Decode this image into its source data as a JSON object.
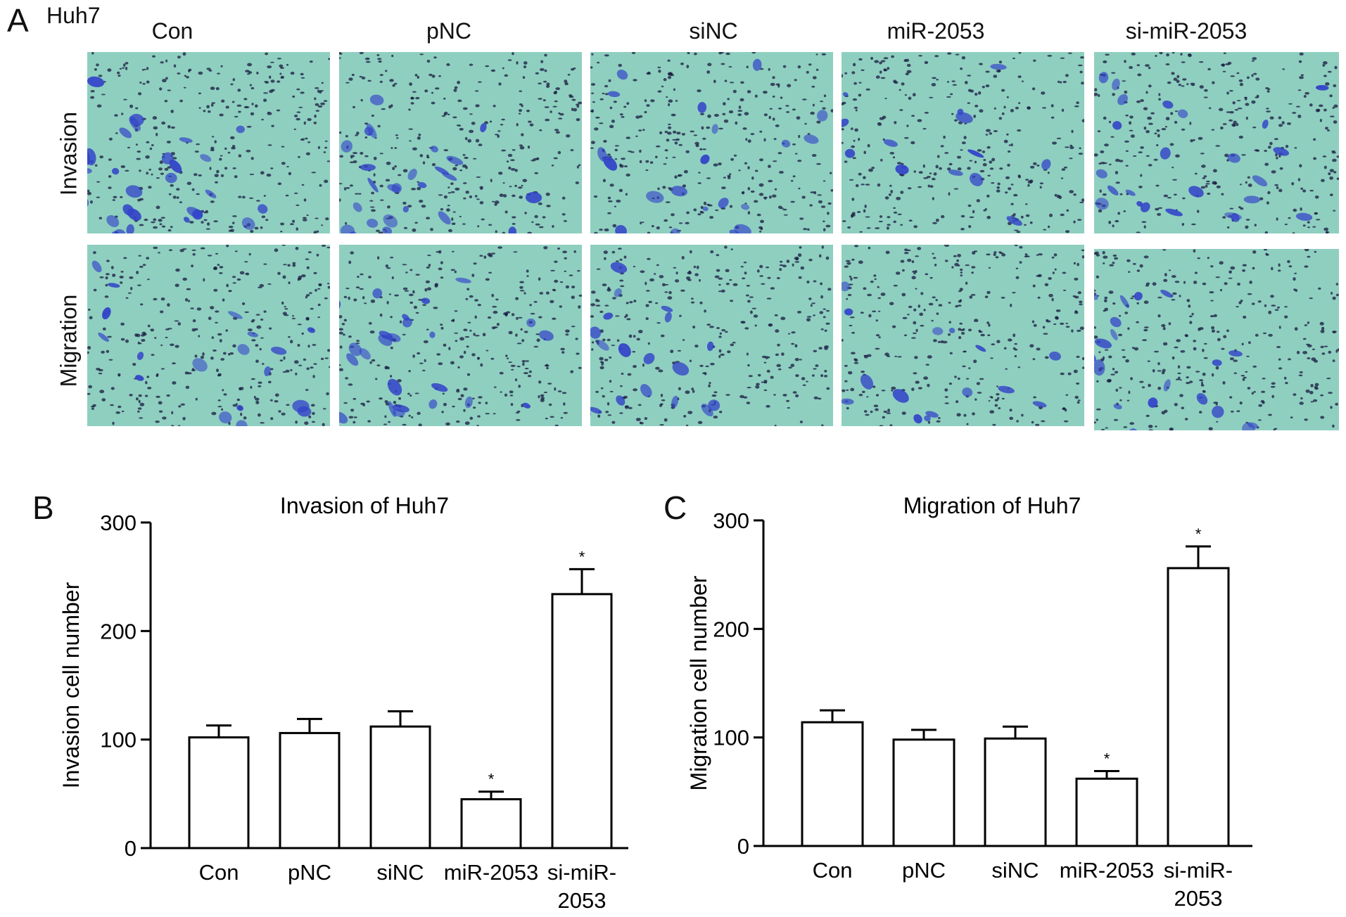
{
  "panel_a": {
    "letter": "A",
    "cell_line": "Huh7",
    "columns": [
      "Con",
      "pNC",
      "siNC",
      "miR-2053",
      "si-miR-2053"
    ],
    "rows": [
      "Invasion",
      "Migration"
    ],
    "colors": {
      "background": "#8fcfc0",
      "stain": "#3344c8",
      "dark": "#1a1a40"
    }
  },
  "panel_b": {
    "letter": "B"
  },
  "panel_c": {
    "letter": "C"
  },
  "chart_data": [
    {
      "type": "bar",
      "title": "Invasion of Huh7",
      "xlabel": "",
      "ylabel": "Invasion cell number",
      "ylim": [
        0,
        300
      ],
      "yticks": [
        0,
        100,
        200,
        300
      ],
      "categories": [
        "Con",
        "pNC",
        "siNC",
        "miR-2053",
        "si-miR-2053"
      ],
      "values": [
        102,
        106,
        112,
        45,
        234
      ],
      "error": [
        11,
        13,
        14,
        7,
        23
      ],
      "significance": [
        "",
        "",
        "",
        "*",
        "*"
      ],
      "bar_fill": "#ffffff",
      "bar_stroke": "#000000"
    },
    {
      "type": "bar",
      "title": "Migration of Huh7",
      "xlabel": "",
      "ylabel": "Migration cell number",
      "ylim": [
        0,
        300
      ],
      "yticks": [
        0,
        100,
        200,
        300
      ],
      "categories": [
        "Con",
        "pNC",
        "siNC",
        "miR-2053",
        "si-miR-2053"
      ],
      "values": [
        114,
        98,
        99,
        62,
        256
      ],
      "error": [
        11,
        9,
        11,
        7,
        20
      ],
      "significance": [
        "",
        "",
        "",
        "*",
        "*"
      ],
      "bar_fill": "#ffffff",
      "bar_stroke": "#000000"
    }
  ]
}
